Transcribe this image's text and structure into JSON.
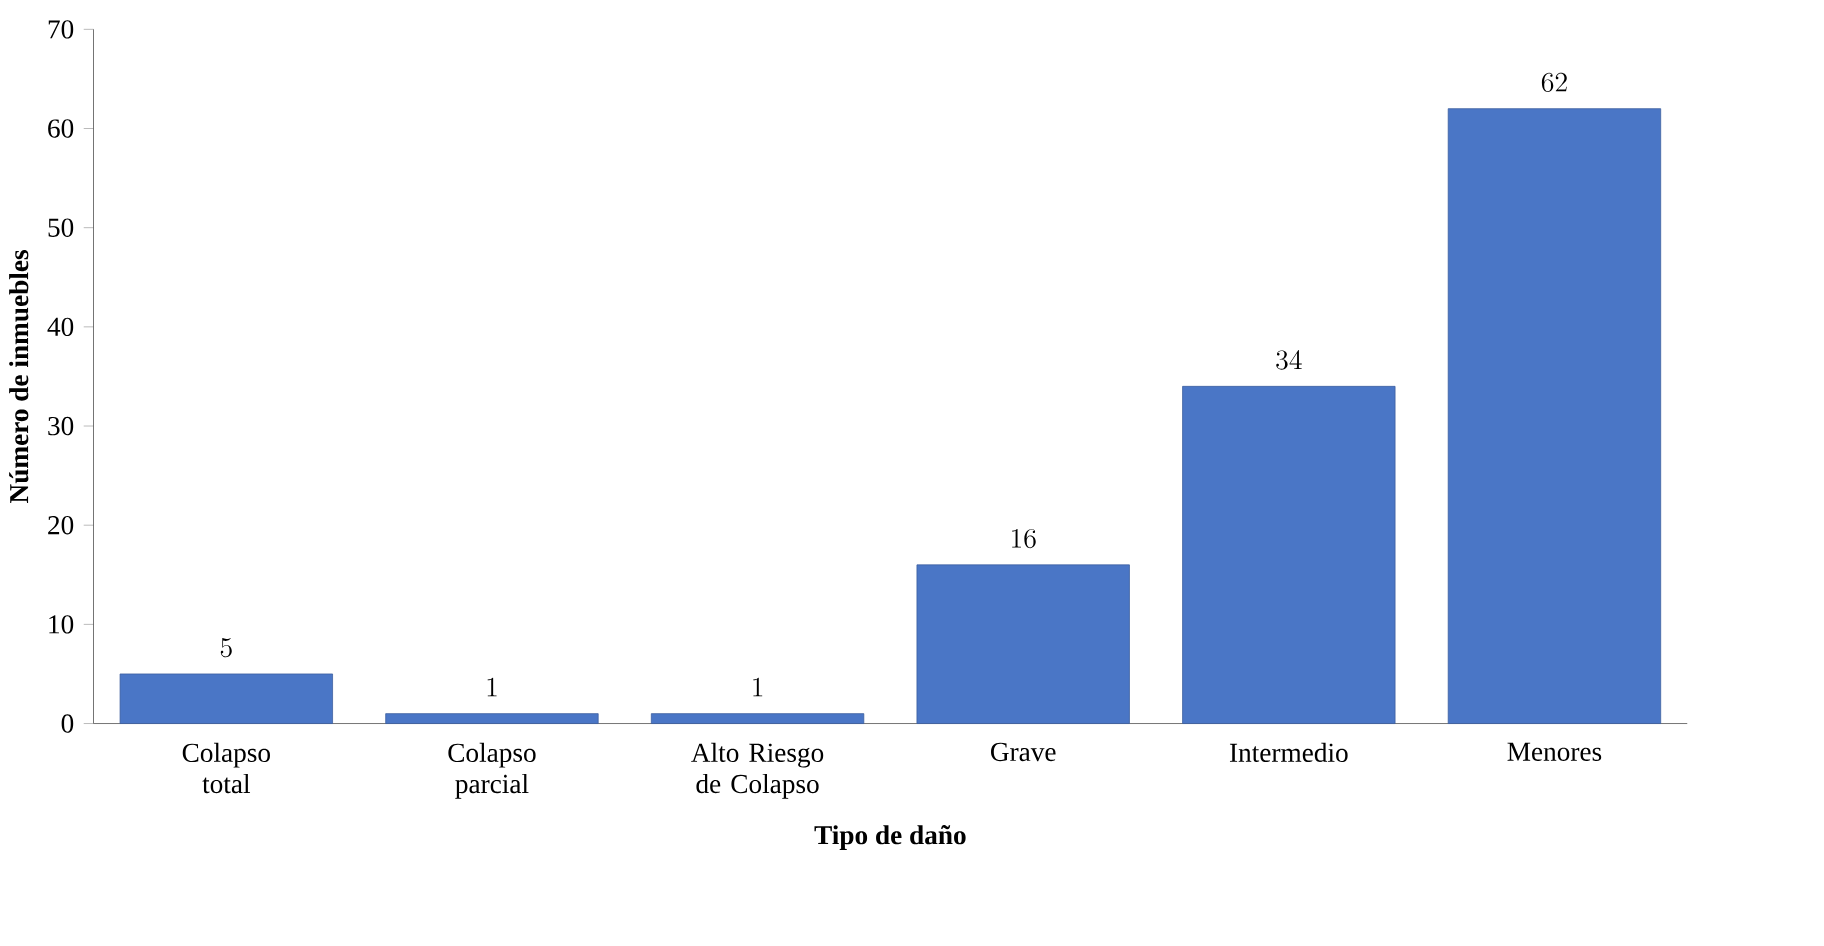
{
  "chart_data": {
    "type": "bar",
    "xlabel": "Tipo de daño",
    "ylabel": "Número de inmuebles",
    "categories": [
      "Colapso total",
      "Colapso parcial",
      "Alto Riesgo de Colapso",
      "Grave",
      "Intermedio",
      "Menores"
    ],
    "values": [
      5,
      1,
      1,
      16,
      34,
      62
    ],
    "color": "#4a76c6",
    "ylim": [
      0,
      70
    ],
    "yticks": [
      0,
      10,
      20,
      30,
      40,
      50,
      60,
      70
    ],
    "data_labels": true
  }
}
